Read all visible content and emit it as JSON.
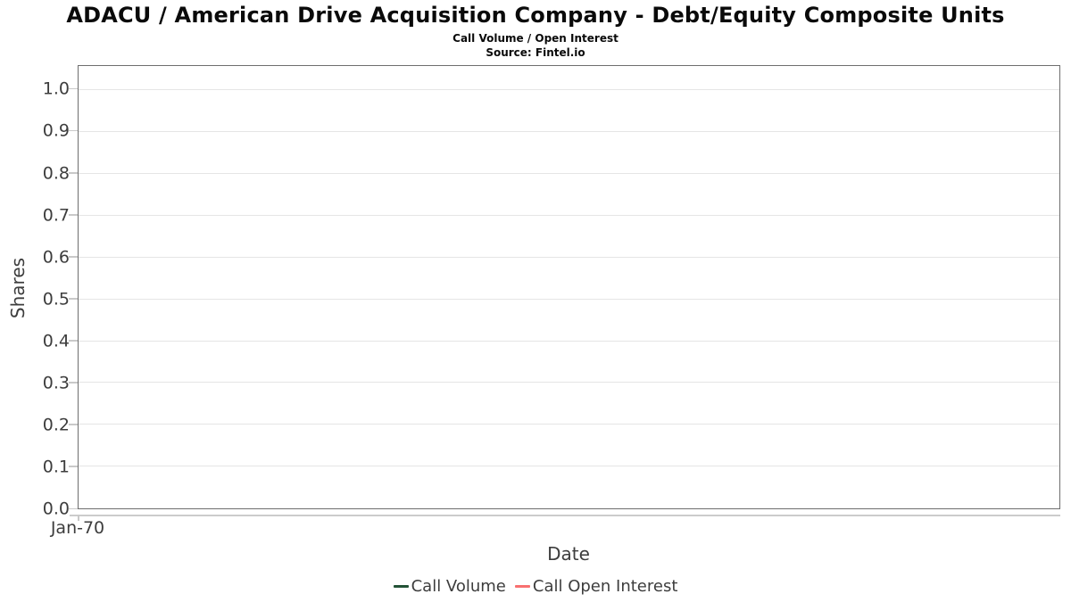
{
  "header": {
    "title": "ADACU / American Drive Acquisition Company - Debt/Equity Composite Units",
    "subtitle": "Call Volume / Open Interest",
    "source": "Source: Fintel.io"
  },
  "chart_data": {
    "type": "line",
    "title": "ADACU / American Drive Acquisition Company - Debt/Equity Composite Units",
    "subtitle": "Call Volume / Open Interest",
    "source": "Source: Fintel.io",
    "xlabel": "Date",
    "ylabel": "Shares",
    "ylim": [
      0.0,
      1.0
    ],
    "yticks": [
      {
        "value": 0.0,
        "label": "0.0"
      },
      {
        "value": 0.1,
        "label": "0.1"
      },
      {
        "value": 0.2,
        "label": "0.2"
      },
      {
        "value": 0.3,
        "label": "0.3"
      },
      {
        "value": 0.4,
        "label": "0.4"
      },
      {
        "value": 0.5,
        "label": "0.5"
      },
      {
        "value": 0.6,
        "label": "0.6"
      },
      {
        "value": 0.7,
        "label": "0.7"
      },
      {
        "value": 0.8,
        "label": "0.8"
      },
      {
        "value": 0.9,
        "label": "0.9"
      },
      {
        "value": 1.0,
        "label": "1.0"
      }
    ],
    "xticks": [
      "Jan-70"
    ],
    "grid": true,
    "legend_position": "bottom",
    "series": [
      {
        "name": "Call Volume",
        "color": "#235236",
        "x": [],
        "values": []
      },
      {
        "name": "Call Open Interest",
        "color": "#f87070",
        "x": [],
        "values": []
      }
    ]
  },
  "colors": {
    "call_volume": "#235236",
    "call_open_interest": "#f87070",
    "plot_border": "#6e6e6e",
    "gridline": "#e5e5e5",
    "tick": "#c9c9c9",
    "axis_text": "#3d3d3d"
  }
}
